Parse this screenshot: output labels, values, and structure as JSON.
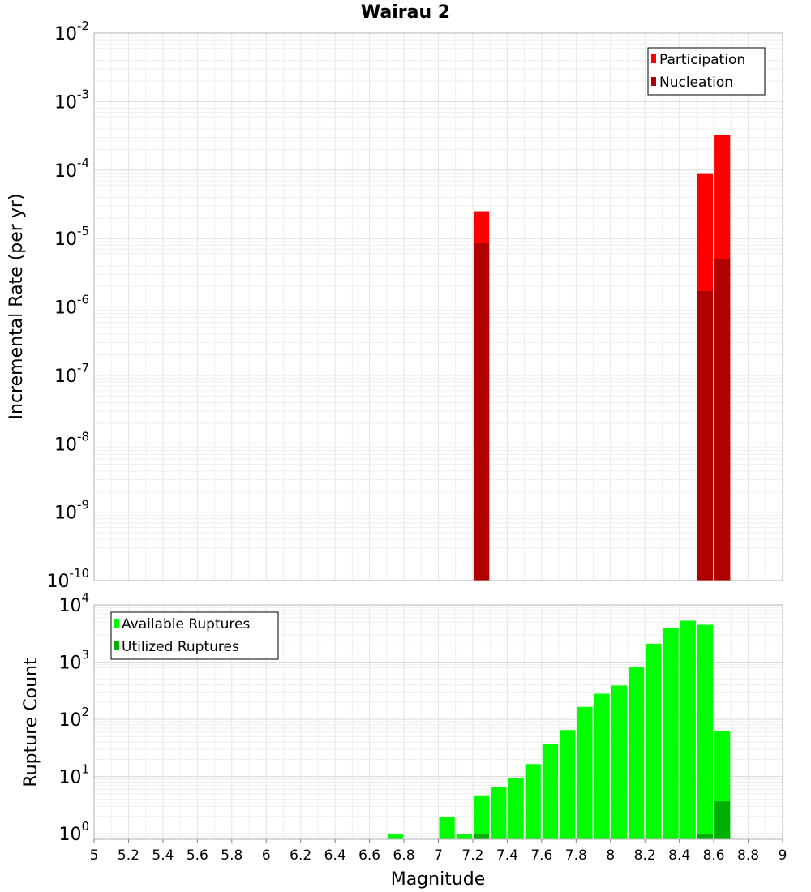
{
  "chart_data": [
    {
      "type": "bar",
      "title": "Wairau 2",
      "xlabel": "Magnitude",
      "ylabel": "Incremental Rate (per yr)",
      "yscale": "log",
      "xlim": [
        5,
        9
      ],
      "ylim": [
        1e-10,
        0.01
      ],
      "grid": true,
      "legend_position": "top-right",
      "bin_width": 0.1,
      "series": [
        {
          "name": "Participation",
          "color": "#ff0000",
          "x": [
            7.25,
            8.55,
            8.65
          ],
          "values": [
            2.5e-05,
            9e-05,
            0.00033
          ]
        },
        {
          "name": "Nucleation",
          "color": "#b00000",
          "x": [
            7.25,
            8.55,
            8.65
          ],
          "values": [
            8.5e-06,
            1.7e-06,
            5e-06
          ]
        }
      ],
      "y_ticks": [
        {
          "base": "10",
          "exp": "-10"
        },
        {
          "base": "10",
          "exp": "-9"
        },
        {
          "base": "10",
          "exp": "-8"
        },
        {
          "base": "10",
          "exp": "-7"
        },
        {
          "base": "10",
          "exp": "-6"
        },
        {
          "base": "10",
          "exp": "-5"
        },
        {
          "base": "10",
          "exp": "-4"
        },
        {
          "base": "10",
          "exp": "-3"
        },
        {
          "base": "10",
          "exp": "-2"
        }
      ]
    },
    {
      "type": "bar",
      "xlabel": "Magnitude",
      "ylabel": "Rupture Count",
      "yscale": "log",
      "xlim": [
        5,
        9
      ],
      "ylim": [
        0.8,
        10000
      ],
      "grid": true,
      "legend_position": "top-left",
      "bin_width": 0.1,
      "series": [
        {
          "name": "Available Ruptures",
          "color": "#00ff00",
          "x": [
            6.75,
            7.05,
            7.15,
            7.25,
            7.35,
            7.45,
            7.55,
            7.65,
            7.75,
            7.85,
            7.95,
            8.05,
            8.15,
            8.25,
            8.35,
            8.45,
            8.55,
            8.65
          ],
          "values": [
            1,
            2,
            1,
            4.7,
            6.5,
            9.5,
            16.5,
            37,
            65,
            165,
            280,
            390,
            810,
            2100,
            4000,
            5300,
            4500,
            62
          ]
        },
        {
          "name": "Utilized Ruptures",
          "color": "#00b000",
          "x": [
            7.25,
            8.55,
            8.65
          ],
          "values": [
            1,
            1,
            3.7
          ]
        }
      ],
      "y_ticks": [
        {
          "base": "10",
          "exp": "0"
        },
        {
          "base": "10",
          "exp": "1"
        },
        {
          "base": "10",
          "exp": "2"
        },
        {
          "base": "10",
          "exp": "3"
        },
        {
          "base": "10",
          "exp": "4"
        }
      ]
    }
  ],
  "x_tick_labels": [
    "5",
    "5.2",
    "5.4",
    "5.6",
    "5.8",
    "6",
    "6.2",
    "6.4",
    "6.6",
    "6.8",
    "7",
    "7.2",
    "7.4",
    "7.6",
    "7.8",
    "8",
    "8.2",
    "8.4",
    "8.6",
    "8.8",
    "9"
  ]
}
